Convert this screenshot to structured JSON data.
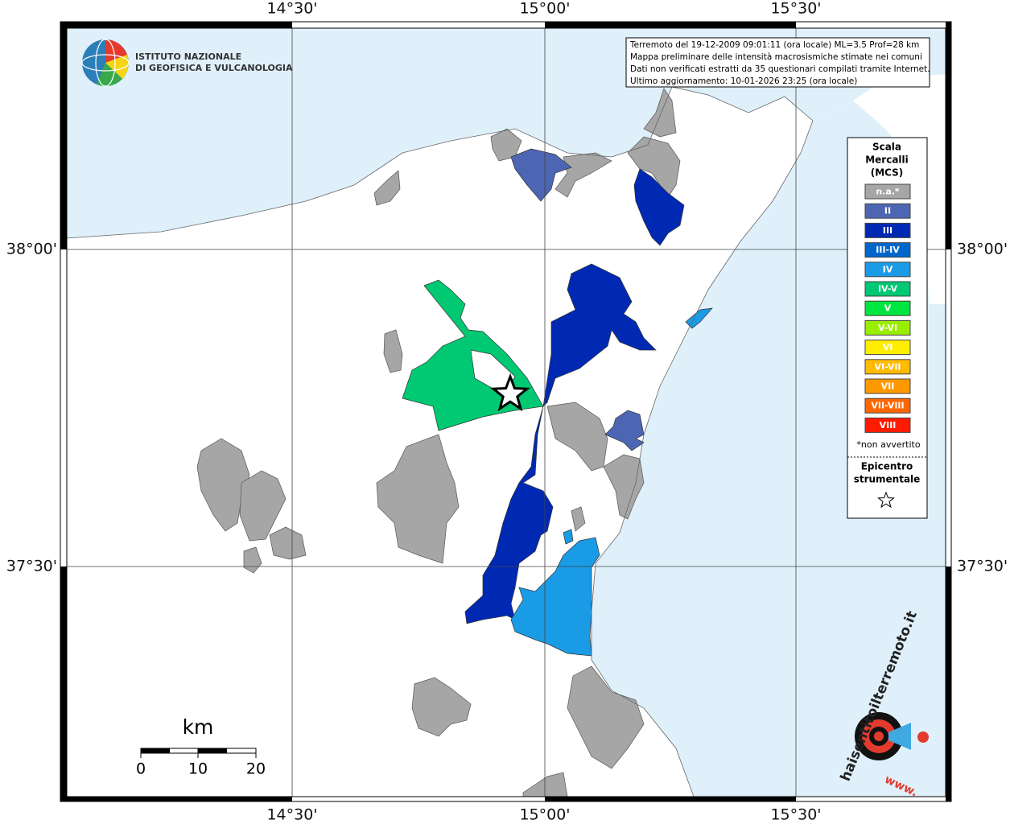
{
  "axes": {
    "x_labels": [
      "14°30'",
      "15°00'",
      "15°30'"
    ],
    "y_labels": [
      "38°00'",
      "37°30'"
    ]
  },
  "logo": {
    "line1": "ISTITUTO NAZIONALE",
    "line2": "DI GEOFISICA E VULCANOLOGIA"
  },
  "info": {
    "lines": [
      "Terremoto del 19-12-2009 09:01:11 (ora locale) ML=3.5 Prof=28 km",
      "Mappa preliminare delle intensità macrosismiche stimate nei comuni",
      "Dati non verificati estratti da 35 questionari compilati tramite Internet.",
      "Ultimo aggiornamento: 10-01-2026 23:25 (ora locale)"
    ]
  },
  "legend": {
    "title": [
      "Scala",
      "Mercalli",
      "(MCS)"
    ],
    "items": [
      {
        "label": "n.a.*",
        "color": "#a6a6a6"
      },
      {
        "label": "II",
        "color": "#4d66b3"
      },
      {
        "label": "III",
        "color": "#0029b3"
      },
      {
        "label": "III-IV",
        "color": "#0066cc"
      },
      {
        "label": "IV",
        "color": "#1a9be6"
      },
      {
        "label": "IV-V",
        "color": "#00c873"
      },
      {
        "label": "V",
        "color": "#00e640"
      },
      {
        "label": "V-VI",
        "color": "#99ee00"
      },
      {
        "label": "VI",
        "color": "#ffee00"
      },
      {
        "label": "VI-VII",
        "color": "#ffbb00"
      },
      {
        "label": "VII",
        "color": "#ff9900"
      },
      {
        "label": "VII-VIII",
        "color": "#ff6600"
      },
      {
        "label": "VIII",
        "color": "#ff1a00"
      }
    ],
    "note": "*non avvertito",
    "epicenter_title": [
      "Epicentro",
      "strumentale"
    ]
  },
  "scale": {
    "unit": "km",
    "ticks": [
      0,
      10,
      20
    ]
  },
  "watermark": {
    "prefix": "www.",
    "site": "haisentitoilterremoto.it"
  }
}
